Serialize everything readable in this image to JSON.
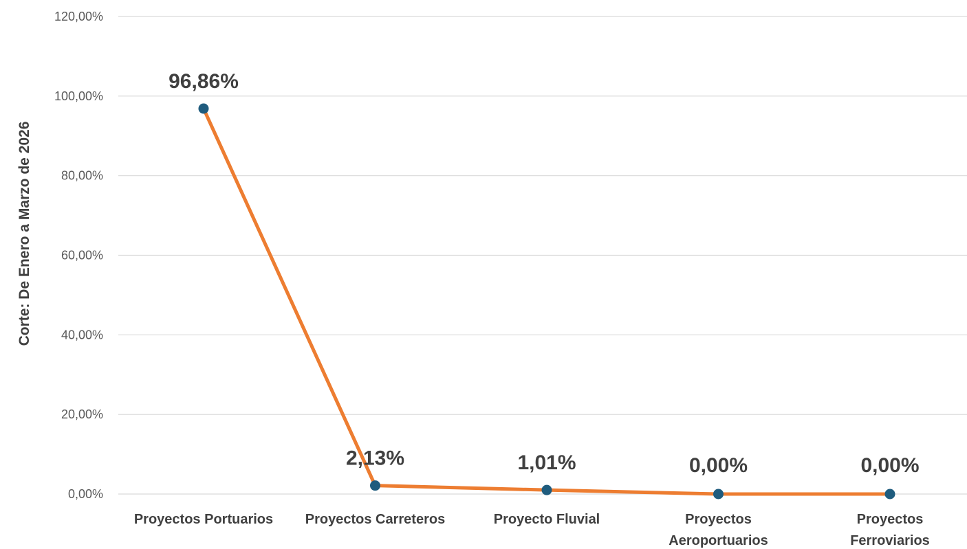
{
  "chart_data": {
    "type": "line",
    "categories": [
      [
        "Proyectos Portuarios"
      ],
      [
        "Proyectos Carreteros"
      ],
      [
        "Proyecto Fluvial"
      ],
      [
        "Proyectos",
        "Aeroportuarios"
      ],
      [
        "Proyectos",
        "Ferroviarios"
      ]
    ],
    "values": [
      96.86,
      2.13,
      1.01,
      0.0,
      0.0
    ],
    "data_labels": [
      "96,86%",
      "2,13%",
      "1,01%",
      "0,00%",
      "0,00%"
    ],
    "ylabel": "Corte: De Enero a Marzo de 2026",
    "ylim": [
      0,
      120
    ],
    "yticks": [
      0,
      20,
      40,
      60,
      80,
      100,
      120
    ],
    "ytick_labels": [
      "0,00%",
      "20,00%",
      "40,00%",
      "60,00%",
      "80,00%",
      "100,00%",
      "120,00%"
    ],
    "grid": true,
    "legend": "none",
    "colors": {
      "line": "#ED7D31",
      "marker": "#1F5C7E",
      "grid": "#D9D9D9"
    }
  }
}
